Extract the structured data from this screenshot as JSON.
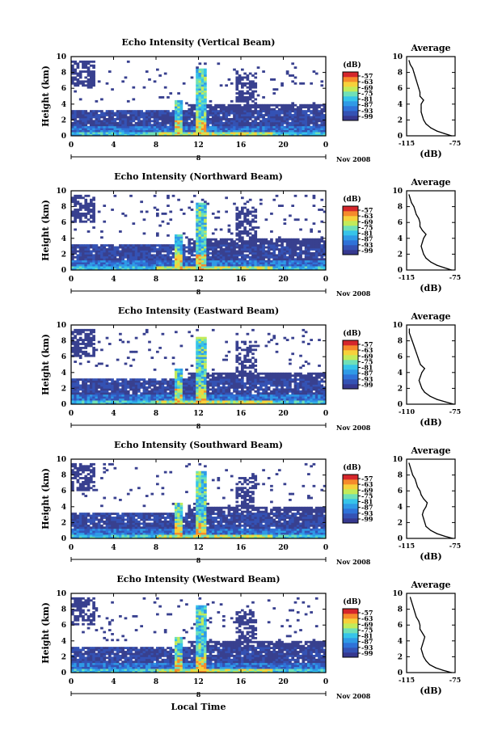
{
  "figure": {
    "xlabel": "Local Time",
    "date_label": "Nov 2008",
    "month_day_label": "8",
    "colorbar_unit": "(dB)",
    "avg_title": "Average",
    "avg_xlabel": "(dB)",
    "ylabel": "Height (km)",
    "colors": {
      "background": "#ffffff",
      "noise_floor": "#38408f",
      "colormap": [
        "#36388f",
        "#3452b4",
        "#2f72d8",
        "#2f9ae6",
        "#36c4e9",
        "#6fe0b7",
        "#c2eb5a",
        "#f6d13b",
        "#f68a2b",
        "#d5262b"
      ]
    }
  },
  "chart_data": [
    {
      "type": "heatmap",
      "title": "Echo Intensity (Vertical Beam)",
      "x_ticks": [
        "0",
        "4",
        "8",
        "12",
        "16",
        "20",
        "0"
      ],
      "y_ticks": [
        "0",
        "2",
        "4",
        "6",
        "8",
        "10"
      ],
      "xlim": [
        0,
        24
      ],
      "ylim": [
        0,
        10
      ],
      "colorbar_ticks": [
        "-57",
        "-63",
        "-69",
        "-75",
        "-81",
        "-87",
        "-93",
        "-99"
      ],
      "avg_x_ticks": [
        "-115",
        "-75"
      ],
      "avg_xlim": [
        -115,
        -75
      ],
      "avg_y_ticks": [
        "0",
        "2",
        "4",
        "6",
        "8",
        "10"
      ],
      "average_profile": {
        "height_km": [
          0,
          0.3,
          0.6,
          1.0,
          1.5,
          2.0,
          2.5,
          3.0,
          3.5,
          4.0,
          4.5,
          5.0,
          5.5,
          6.0,
          6.5,
          7.0,
          7.5,
          8.0,
          8.5,
          9.0,
          9.5
        ],
        "db": [
          -78,
          -84,
          -90,
          -95,
          -99,
          -101,
          -102,
          -103,
          -103,
          -103,
          -101,
          -104,
          -104,
          -105,
          -106,
          -107,
          -108,
          -109,
          -110,
          -112,
          -113
        ]
      }
    },
    {
      "type": "heatmap",
      "title": "Echo Intensity (Northward Beam)",
      "x_ticks": [
        "0",
        "4",
        "8",
        "12",
        "16",
        "20",
        "0"
      ],
      "y_ticks": [
        "0",
        "2",
        "4",
        "6",
        "8",
        "10"
      ],
      "xlim": [
        0,
        24
      ],
      "ylim": [
        0,
        10
      ],
      "colorbar_ticks": [
        "-57",
        "-63",
        "-69",
        "-75",
        "-81",
        "-87",
        "-93",
        "-99"
      ],
      "avg_x_ticks": [
        "-115",
        "-75"
      ],
      "avg_xlim": [
        -115,
        -75
      ],
      "avg_y_ticks": [
        "0",
        "2",
        "4",
        "6",
        "8",
        "10"
      ],
      "average_profile": {
        "height_km": [
          0,
          0.3,
          0.6,
          1.0,
          1.5,
          2.0,
          2.5,
          3.0,
          3.5,
          4.0,
          4.5,
          5.0,
          5.5,
          6.0,
          6.5,
          7.0,
          7.5,
          8.0,
          8.5,
          9.0,
          9.5
        ],
        "db": [
          -78,
          -84,
          -90,
          -95,
          -99,
          -101,
          -102,
          -103,
          -102,
          -101,
          -99,
          -102,
          -104,
          -104,
          -105,
          -107,
          -108,
          -109,
          -111,
          -112,
          -113
        ]
      }
    },
    {
      "type": "heatmap",
      "title": "Echo Intensity (Eastward Beam)",
      "x_ticks": [
        "0",
        "4",
        "8",
        "12",
        "16",
        "20",
        "0"
      ],
      "y_ticks": [
        "0",
        "2",
        "4",
        "6",
        "8",
        "10"
      ],
      "xlim": [
        0,
        24
      ],
      "ylim": [
        0,
        10
      ],
      "colorbar_ticks": [
        "-57",
        "-63",
        "-69",
        "-75",
        "-81",
        "-87",
        "-93",
        "-99"
      ],
      "avg_x_ticks": [
        "-110",
        "-75"
      ],
      "avg_xlim": [
        -110,
        -75
      ],
      "avg_y_ticks": [
        "0",
        "2",
        "4",
        "6",
        "8",
        "10"
      ],
      "average_profile": {
        "height_km": [
          0,
          0.3,
          0.6,
          1.0,
          1.5,
          2.0,
          2.5,
          3.0,
          3.5,
          4.0,
          4.5,
          5.0,
          5.5,
          6.0,
          6.5,
          7.0,
          7.5,
          8.0,
          8.5,
          9.0,
          9.5
        ],
        "db": [
          -76,
          -82,
          -88,
          -93,
          -97,
          -99,
          -100,
          -101,
          -100,
          -99,
          -97,
          -100,
          -101,
          -102,
          -103,
          -104,
          -105,
          -106,
          -107,
          -108,
          -108
        ]
      }
    },
    {
      "type": "heatmap",
      "title": "Echo Intensity (Southward Beam)",
      "x_ticks": [
        "0",
        "4",
        "8",
        "12",
        "16",
        "20",
        "0"
      ],
      "y_ticks": [
        "0",
        "2",
        "4",
        "6",
        "8",
        "10"
      ],
      "xlim": [
        0,
        24
      ],
      "ylim": [
        0,
        10
      ],
      "colorbar_ticks": [
        "-57",
        "-63",
        "-69",
        "-75",
        "-81",
        "-87",
        "-93",
        "-99"
      ],
      "avg_x_ticks": [
        "-115",
        "-75"
      ],
      "avg_xlim": [
        -115,
        -75
      ],
      "avg_y_ticks": [
        "0",
        "2",
        "4",
        "6",
        "8",
        "10"
      ],
      "average_profile": {
        "height_km": [
          0,
          0.3,
          0.6,
          1.0,
          1.5,
          2.0,
          2.5,
          3.0,
          3.5,
          4.0,
          4.5,
          5.0,
          5.5,
          6.0,
          6.5,
          7.0,
          7.5,
          8.0,
          8.5,
          9.0,
          9.5
        ],
        "db": [
          -77,
          -84,
          -90,
          -95,
          -99,
          -100,
          -101,
          -102,
          -101,
          -99,
          -98,
          -101,
          -103,
          -104,
          -106,
          -107,
          -108,
          -110,
          -111,
          -112,
          -113
        ]
      }
    },
    {
      "type": "heatmap",
      "title": "Echo Intensity (Westward Beam)",
      "x_ticks": [
        "0",
        "4",
        "8",
        "12",
        "16",
        "20",
        "0"
      ],
      "y_ticks": [
        "0",
        "2",
        "4",
        "6",
        "8",
        "10"
      ],
      "xlim": [
        0,
        24
      ],
      "ylim": [
        0,
        10
      ],
      "colorbar_ticks": [
        "-57",
        "-63",
        "-69",
        "-75",
        "-81",
        "-87",
        "-93",
        "-99"
      ],
      "avg_x_ticks": [
        "-115",
        "-75"
      ],
      "avg_xlim": [
        -115,
        -75
      ],
      "avg_y_ticks": [
        "0",
        "2",
        "4",
        "6",
        "8",
        "10"
      ],
      "average_profile": {
        "height_km": [
          0,
          0.3,
          0.6,
          1.0,
          1.5,
          2.0,
          2.5,
          3.0,
          3.5,
          4.0,
          4.5,
          5.0,
          5.5,
          6.0,
          6.5,
          7.0,
          7.5,
          8.0,
          8.5,
          9.0,
          9.5
        ],
        "db": [
          -78,
          -85,
          -91,
          -96,
          -99,
          -101,
          -102,
          -103,
          -102,
          -101,
          -100,
          -102,
          -104,
          -104,
          -105,
          -107,
          -108,
          -109,
          -110,
          -111,
          -112
        ]
      }
    }
  ]
}
